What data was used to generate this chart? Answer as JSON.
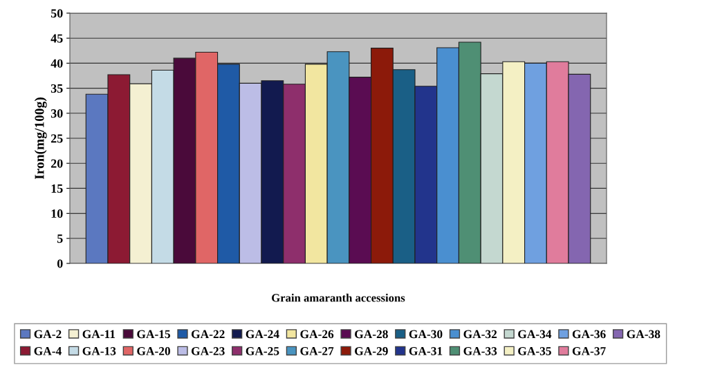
{
  "chart_data": {
    "type": "bar",
    "xlabel": "Grain amaranth accessions",
    "ylabel": "Iron(mg/100g)",
    "categories": [
      null
    ],
    "ylim": [
      0,
      50
    ],
    "yticks": [
      0,
      5,
      10,
      15,
      20,
      25,
      30,
      35,
      40,
      45,
      50
    ],
    "grid": "y",
    "legend": "bottom",
    "series": [
      {
        "name": "GA-2",
        "color": "#5b78c0",
        "values": [
          33.8
        ]
      },
      {
        "name": "GA-4",
        "color": "#8c1a33",
        "values": [
          37.7
        ]
      },
      {
        "name": "GA-11",
        "color": "#f4f0d2",
        "values": [
          35.9
        ]
      },
      {
        "name": "GA-13",
        "color": "#c4dbe6",
        "values": [
          38.6
        ]
      },
      {
        "name": "GA-15",
        "color": "#4a0a3a",
        "values": [
          41.0
        ]
      },
      {
        "name": "GA-20",
        "color": "#e06666",
        "values": [
          42.2
        ]
      },
      {
        "name": "GA-22",
        "color": "#1f5aa6",
        "values": [
          39.8
        ]
      },
      {
        "name": "GA-23",
        "color": "#bcbde6",
        "values": [
          36.0
        ]
      },
      {
        "name": "GA-24",
        "color": "#121a4f",
        "values": [
          36.5
        ]
      },
      {
        "name": "GA-25",
        "color": "#8e2f6c",
        "values": [
          35.8
        ]
      },
      {
        "name": "GA-26",
        "color": "#f2e6a0",
        "values": [
          39.8
        ]
      },
      {
        "name": "GA-27",
        "color": "#4a94c0",
        "values": [
          42.3
        ]
      },
      {
        "name": "GA-28",
        "color": "#5a0c52",
        "values": [
          37.2
        ]
      },
      {
        "name": "GA-29",
        "color": "#8c1a0a",
        "values": [
          43.0
        ]
      },
      {
        "name": "GA-30",
        "color": "#1a5f86",
        "values": [
          38.7
        ]
      },
      {
        "name": "GA-31",
        "color": "#22348c",
        "values": [
          35.4
        ]
      },
      {
        "name": "GA-32",
        "color": "#4a8fd0",
        "values": [
          43.1
        ]
      },
      {
        "name": "GA-33",
        "color": "#4f8f74",
        "values": [
          44.2
        ]
      },
      {
        "name": "GA-34",
        "color": "#c4d8d0",
        "values": [
          37.9
        ]
      },
      {
        "name": "GA-35",
        "color": "#f4f0c4",
        "values": [
          40.3
        ]
      },
      {
        "name": "GA-36",
        "color": "#6fa0e0",
        "values": [
          40.0
        ]
      },
      {
        "name": "GA-37",
        "color": "#e07c9c",
        "values": [
          40.3
        ]
      },
      {
        "name": "GA-38",
        "color": "#8466b0",
        "values": [
          37.8
        ]
      }
    ]
  }
}
